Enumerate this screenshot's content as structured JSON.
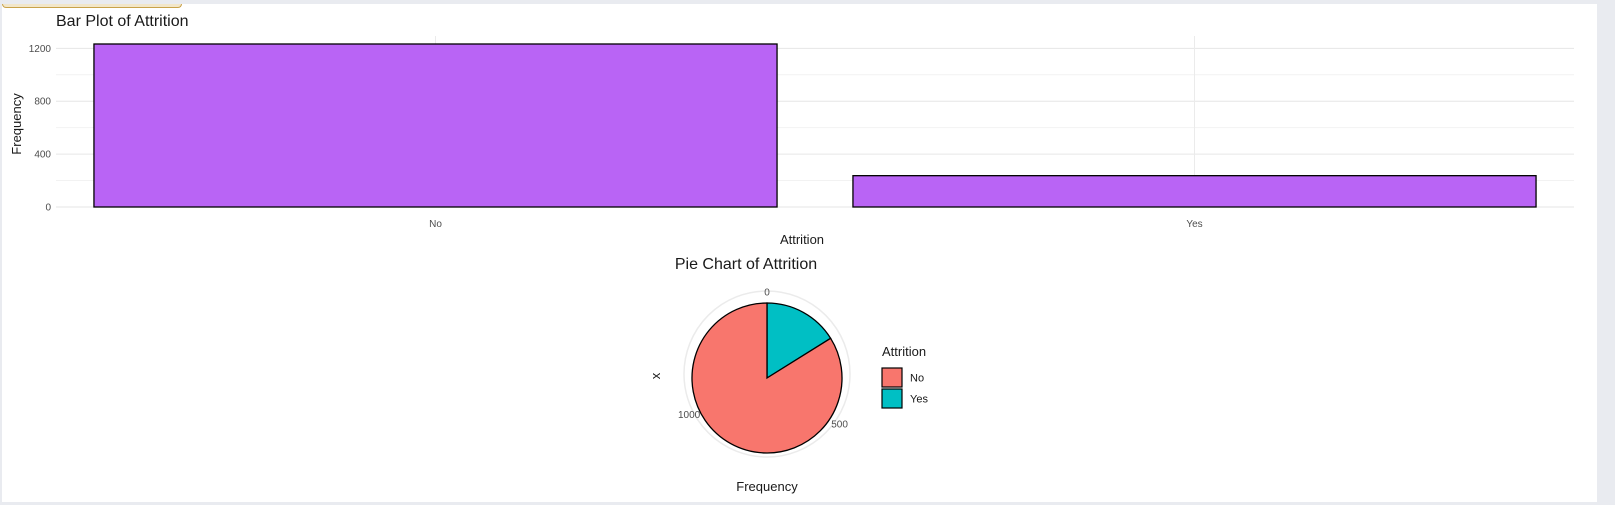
{
  "chart_data": [
    {
      "type": "bar",
      "title": "Bar Plot of Attrition",
      "xlabel": "Attrition",
      "ylabel": "Frequency",
      "categories": [
        "No",
        "Yes"
      ],
      "values": [
        1233,
        237
      ],
      "ylim": [
        0,
        1233
      ],
      "yticks": [
        0,
        400,
        800,
        1200
      ],
      "grid": true,
      "colors": {
        "fill": "#b964f5",
        "outline": "#000000"
      }
    },
    {
      "type": "pie",
      "title": "Pie Chart of Attrition",
      "xlabel": "Frequency",
      "ylabel": "x",
      "categories": [
        "No",
        "Yes"
      ],
      "values": [
        1233,
        237
      ],
      "angle_ticks": [
        0,
        500,
        1000
      ],
      "legend": {
        "title": "Attrition",
        "position": "right"
      },
      "colors": {
        "No": "#f8766d",
        "Yes": "#00bfc4",
        "outline": "#000000"
      }
    }
  ]
}
